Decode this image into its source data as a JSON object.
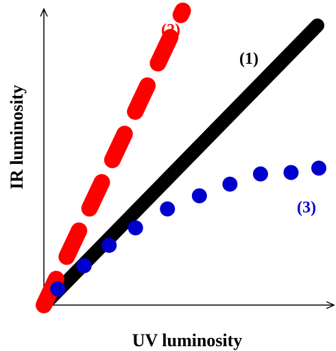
{
  "chart_data": {
    "type": "line",
    "title": "",
    "xlabel": "UV luminosity",
    "ylabel": "IR luminosity",
    "xlim": [
      0,
      10
    ],
    "ylim": [
      0,
      10
    ],
    "grid": false,
    "legend": "none",
    "series": [
      {
        "name": "(1)",
        "style": "solid",
        "color": "#000000",
        "x": [
          0,
          9.85
        ],
        "y": [
          0,
          9.6
        ]
      },
      {
        "name": "(2)",
        "style": "dashed",
        "color": "#ff0000",
        "x": [
          0,
          5.0
        ],
        "y": [
          0,
          10.1
        ]
      },
      {
        "name": "(3)",
        "style": "dotted",
        "color": "#0000cc",
        "x": [
          0.5,
          1.45,
          2.35,
          3.3,
          4.45,
          5.6,
          6.7,
          7.8,
          8.9,
          9.9
        ],
        "y": [
          0.55,
          1.35,
          2.05,
          2.65,
          3.3,
          3.75,
          4.15,
          4.5,
          4.55,
          4.7
        ]
      }
    ]
  }
}
